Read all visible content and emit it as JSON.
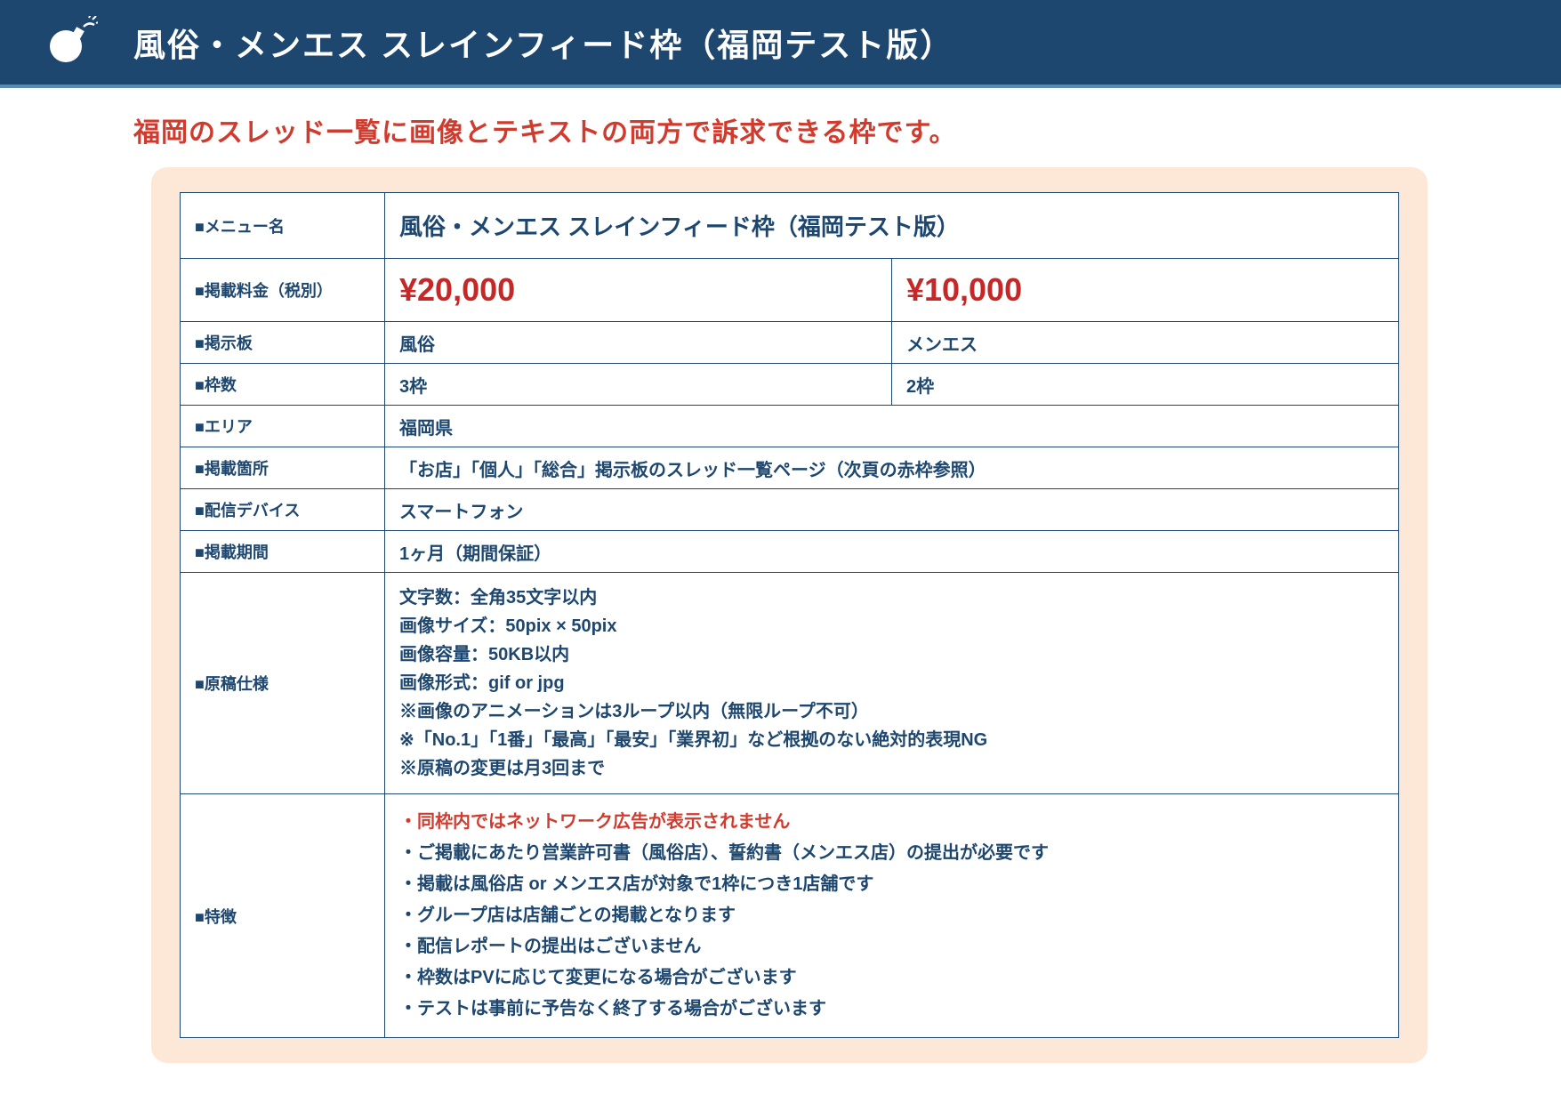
{
  "header": {
    "title": "風俗・メンエス スレインフィード枠（福岡テスト版）",
    "accent": "#1e4770"
  },
  "subtitle": "福岡のスレッド一覧に画像とテキストの両方で訴求できる枠です。",
  "table": {
    "labels": {
      "menu": "■メニュー名",
      "price": "■掲載料金（税別）",
      "board": "■掲示板",
      "slots": "■枠数",
      "area": "■エリア",
      "placement": "■掲載箇所",
      "device": "■配信デバイス",
      "period": "■掲載期間",
      "spec": "■原稿仕様",
      "features": "■特徴"
    },
    "menu_name": "風俗・メンエス スレインフィード枠（福岡テスト版）",
    "price_a": "¥20,000",
    "price_b": "¥10,000",
    "board_a": "風俗",
    "board_b": "メンエス",
    "slots_a": "3枠",
    "slots_b": "2枠",
    "area": "福岡県",
    "placement": "「お店」「個人」「総合」掲示板のスレッド一覧ページ（次頁の赤枠参照）",
    "device": "スマートフォン",
    "period": "1ヶ月（期間保証）",
    "spec_lines": [
      "文字数：全角35文字以内",
      "画像サイズ：50pix × 50pix",
      "画像容量：50KB以内",
      "画像形式：gif or jpg",
      "※画像のアニメーションは3ループ以内（無限ループ不可）",
      "※「No.1」「1番」「最高」「最安」「業界初」など根拠のない絶対的表現NG",
      "※原稿の変更は月3回まで"
    ],
    "feature_lines": [
      {
        "text": "・同枠内ではネットワーク広告が表示されません",
        "red": true
      },
      {
        "text": "・ご掲載にあたり営業許可書（風俗店）、誓約書（メンエス店）の提出が必要です",
        "red": false
      },
      {
        "text": "・掲載は風俗店 or メンエス店が対象で1枠につき1店舗です",
        "red": false
      },
      {
        "text": "・グループ店は店舗ごとの掲載となります",
        "red": false
      },
      {
        "text": "・配信レポートの提出はございません",
        "red": false
      },
      {
        "text": "・枠数はPVに応じて変更になる場合がございます",
        "red": false
      },
      {
        "text": "・テストは事前に予告なく終了する場合がございます",
        "red": false
      }
    ]
  },
  "colors": {
    "brand": "#1e4770",
    "accent_red": "#d13b2e",
    "price_red": "#c62828",
    "panel_bg": "#fde8d8"
  }
}
